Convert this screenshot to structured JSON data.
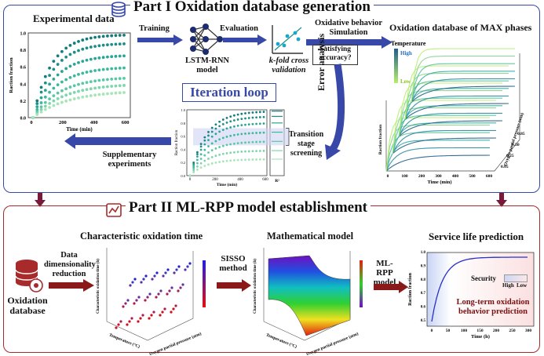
{
  "part1": {
    "title": "Part I  Oxidation database generation",
    "experimental_data": "Experimental data",
    "training": "Training",
    "model_label": "LSTM-RNN model",
    "evaluation": "Evaluation",
    "kfold": "k-fold cross validation",
    "oxidative_sim": "Oxidative behavior Simulation",
    "database_title": "Oxidation database of MAX phases",
    "satisfying": "Satisfying accuracy?",
    "error_analysis": "Error analysis",
    "iteration_loop": "Iteration loop",
    "transition": "Transition stage screening",
    "supplementary": "Supplementary experiments",
    "temperature": "Temperature",
    "high": "High",
    "low": "Low",
    "ylabel": "Raction fraction",
    "xlabel": "Time (min)",
    "p_axis": "Oxygen partial pressure (atm)",
    "r2": "R²",
    "ticks_time": [
      "0",
      "200",
      "400",
      "600"
    ],
    "ticks_y": [
      "0.0",
      "0.2",
      "0.4",
      "0.6",
      "0.8",
      "1.0"
    ],
    "db_time_ticks": [
      "0",
      "100",
      "200",
      "300",
      "400",
      "500",
      "600"
    ],
    "db_p_ticks": [
      "0.05",
      "0.25",
      "0.50",
      "0.85"
    ]
  },
  "part2": {
    "title": "Part II ML-RPP model establishment",
    "char_time": "Characteristic oxidation time",
    "data_dim": "Data dimensionality reduction",
    "ox_database": "Oxidation database",
    "sisso": "SISSO method",
    "math_model": "Mathematical model",
    "mlrpp": "ML-RPP model",
    "service_life": "Service life prediction",
    "security": "Security",
    "high": "High",
    "low": "Low",
    "long_term": "Long-term oxidation behavior prediction",
    "ylabel3d": "Characteristic oxidation time (h)",
    "temp_axis": "Temperature (°C)",
    "p_axis": "Oxygen partial pressure (atm)",
    "sl_xlabel": "Time (h)",
    "sl_ylabel": "Raction fraction",
    "sl_xticks": [
      "0",
      "50",
      "100",
      "150",
      "200",
      "250",
      "300"
    ],
    "sl_yticks": [
      "0.5",
      "0.6",
      "0.7",
      "0.8",
      "0.9",
      "1.0"
    ]
  },
  "colors": {
    "blue": "#3848a8",
    "red": "#a82a2a",
    "teal": "#137d7b"
  }
}
